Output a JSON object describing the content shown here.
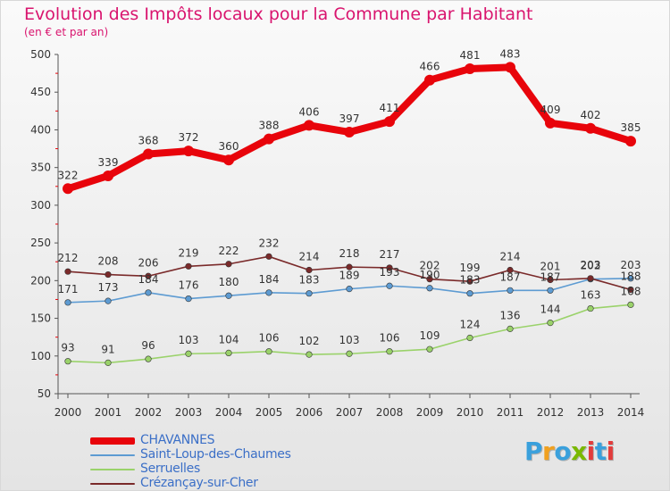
{
  "title": "Evolution des Impôts locaux pour la Commune par Habitant",
  "subtitle": "(en € et par an)",
  "logo": {
    "letters": [
      "P",
      "r",
      "o",
      "x",
      "i",
      "t",
      "i"
    ],
    "colors": [
      "#3aa0dc",
      "#f0a020",
      "#3aa0dc",
      "#7ab800",
      "#e23c3c",
      "#3aa0dc",
      "#e23c3c"
    ]
  },
  "chart_data": {
    "type": "line",
    "x": [
      "2000",
      "2001",
      "2002",
      "2003",
      "2004",
      "2005",
      "2006",
      "2007",
      "2008",
      "2009",
      "2010",
      "2011",
      "2012",
      "2013",
      "2014"
    ],
    "ylim": [
      50,
      500
    ],
    "yticks": [
      50,
      100,
      150,
      200,
      250,
      300,
      350,
      400,
      450,
      500
    ],
    "grid": false,
    "legend_position": "bottom-left",
    "series": [
      {
        "name": "CHAVANNES",
        "color": "#e8040b",
        "values": [
          322,
          339,
          368,
          372,
          360,
          388,
          406,
          397,
          411,
          466,
          481,
          483,
          409,
          402,
          385
        ]
      },
      {
        "name": "Saint-Loup-des-Chaumes",
        "color": "#5d9bd2",
        "values": [
          171,
          173,
          184,
          176,
          180,
          184,
          183,
          189,
          193,
          190,
          183,
          187,
          187,
          202,
          203
        ]
      },
      {
        "name": "Serruelles",
        "color": "#9ad26a",
        "values": [
          93,
          91,
          96,
          103,
          104,
          106,
          102,
          103,
          106,
          109,
          124,
          136,
          144,
          163,
          168
        ]
      },
      {
        "name": "Crézançay-sur-Cher",
        "color": "#7a2a2a",
        "values": [
          212,
          208,
          206,
          219,
          222,
          232,
          214,
          218,
          217,
          202,
          199,
          214,
          201,
          203,
          188
        ]
      }
    ]
  }
}
